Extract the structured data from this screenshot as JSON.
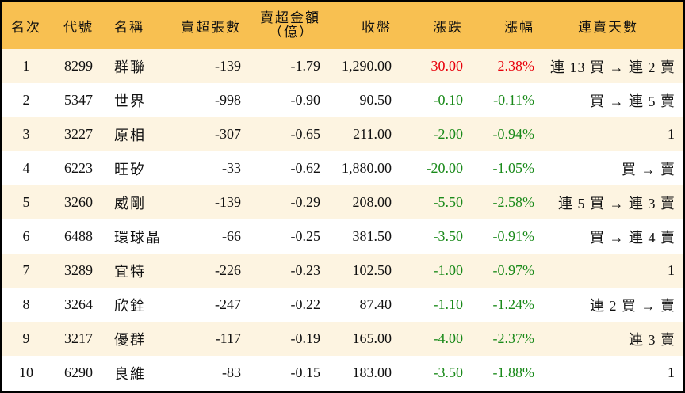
{
  "table": {
    "headers": {
      "rank": "名次",
      "code": "代號",
      "name": "名稱",
      "net_sell_qty": "賣超張數",
      "net_sell_amount_line1": "賣超金額",
      "net_sell_amount_line2": "（億）",
      "close": "收盤",
      "change": "漲跌",
      "change_pct": "漲幅",
      "streak": "連賣天數"
    },
    "colors": {
      "header_bg": "#f8c051",
      "alt_row_bg": "#fdf4e1",
      "up": "#e8000b",
      "down": "#1a8a1a"
    },
    "rows": [
      {
        "rank": "1",
        "code": "8299",
        "name": "群聯",
        "qty": "-139",
        "amount": "-1.79",
        "close": "1,290.00",
        "change": "30.00",
        "pct": "2.38%",
        "dir": "up",
        "streak": "連 13 買 → 連 2 賣"
      },
      {
        "rank": "2",
        "code": "5347",
        "name": "世界",
        "qty": "-998",
        "amount": "-0.90",
        "close": "90.50",
        "change": "-0.10",
        "pct": "-0.11%",
        "dir": "down",
        "streak": "買 → 連 5 賣"
      },
      {
        "rank": "3",
        "code": "3227",
        "name": "原相",
        "qty": "-307",
        "amount": "-0.65",
        "close": "211.00",
        "change": "-2.00",
        "pct": "-0.94%",
        "dir": "down",
        "streak": "1"
      },
      {
        "rank": "4",
        "code": "6223",
        "name": "旺矽",
        "qty": "-33",
        "amount": "-0.62",
        "close": "1,880.00",
        "change": "-20.00",
        "pct": "-1.05%",
        "dir": "down",
        "streak": "買 → 賣"
      },
      {
        "rank": "5",
        "code": "3260",
        "name": "威剛",
        "qty": "-139",
        "amount": "-0.29",
        "close": "208.00",
        "change": "-5.50",
        "pct": "-2.58%",
        "dir": "down",
        "streak": "連 5 買 → 連 3 賣"
      },
      {
        "rank": "6",
        "code": "6488",
        "name": "環球晶",
        "qty": "-66",
        "amount": "-0.25",
        "close": "381.50",
        "change": "-3.50",
        "pct": "-0.91%",
        "dir": "down",
        "streak": "買 → 連 4 賣"
      },
      {
        "rank": "7",
        "code": "3289",
        "name": "宜特",
        "qty": "-226",
        "amount": "-0.23",
        "close": "102.50",
        "change": "-1.00",
        "pct": "-0.97%",
        "dir": "down",
        "streak": "1"
      },
      {
        "rank": "8",
        "code": "3264",
        "name": "欣銓",
        "qty": "-247",
        "amount": "-0.22",
        "close": "87.40",
        "change": "-1.10",
        "pct": "-1.24%",
        "dir": "down",
        "streak": "連 2 買 → 賣"
      },
      {
        "rank": "9",
        "code": "3217",
        "name": "優群",
        "qty": "-117",
        "amount": "-0.19",
        "close": "165.00",
        "change": "-4.00",
        "pct": "-2.37%",
        "dir": "down",
        "streak": "連 3 賣"
      },
      {
        "rank": "10",
        "code": "6290",
        "name": "良維",
        "qty": "-83",
        "amount": "-0.15",
        "close": "183.00",
        "change": "-3.50",
        "pct": "-1.88%",
        "dir": "down",
        "streak": "1"
      }
    ]
  }
}
